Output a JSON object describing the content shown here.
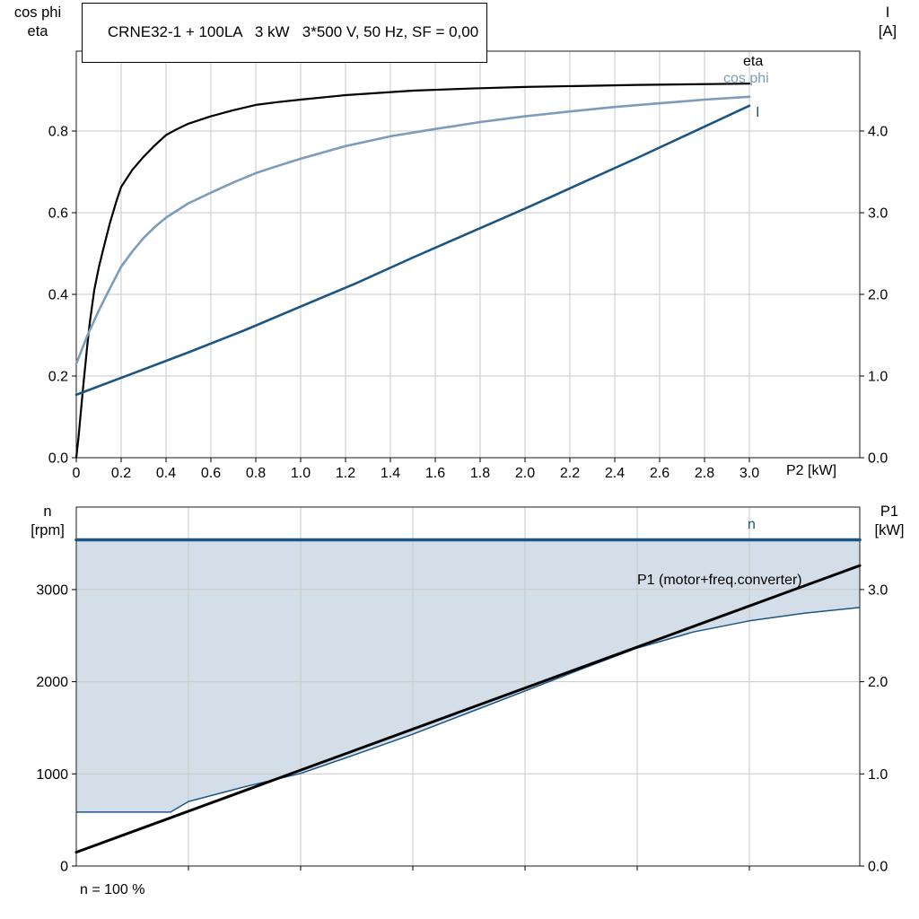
{
  "colors": {
    "dark_blue": "#1b5583",
    "light_blue": "#7d9cbc",
    "black": "#000000",
    "grid": "#c8c8c8",
    "fill": "#c9d6e2",
    "background": "#ffffff"
  },
  "chart_data": [
    {
      "type": "line",
      "title": "CRNE32-1 + 100LA   3 kW   3*500 V, 50 Hz, SF = 0,00",
      "x_axis": {
        "label": "P2 [kW]",
        "min": 0,
        "max": 3.492,
        "ticks": [
          0,
          0.2,
          0.4,
          0.6,
          0.8,
          1.0,
          1.2,
          1.4,
          1.6,
          1.8,
          2.0,
          2.2,
          2.4,
          2.6,
          2.8,
          3.0
        ],
        "tick_labels": [
          "0",
          "0.2",
          "0.4",
          "0.6",
          "0.8",
          "1.0",
          "1.2",
          "1.4",
          "1.6",
          "1.8",
          "2.0",
          "2.2",
          "2.4",
          "2.6",
          "2.8",
          "3.0"
        ]
      },
      "y_left": {
        "label_lines": [
          "cos phi",
          "eta"
        ],
        "min": 0,
        "max": 0.9956,
        "ticks": [
          0,
          0.2,
          0.4,
          0.6,
          0.8
        ],
        "tick_labels": [
          "0.0",
          "0.2",
          "0.4",
          "0.6",
          "0.8"
        ]
      },
      "y_right": {
        "label_lines": [
          "I",
          "[A]"
        ],
        "min": 0,
        "max": 4.978,
        "ticks": [
          0,
          1,
          2,
          3,
          4
        ],
        "tick_labels": [
          "0.0",
          "1.0",
          "2.0",
          "3.0",
          "4.0"
        ]
      },
      "grid": true,
      "legend_position": "inline-right",
      "series": [
        {
          "id": "eta",
          "name": "eta",
          "axis": "left",
          "color": "#000000",
          "width": 2.2,
          "points": [
            [
              0,
              0
            ],
            [
              0.01,
              0.05
            ],
            [
              0.02,
              0.11
            ],
            [
              0.03,
              0.17
            ],
            [
              0.04,
              0.225
            ],
            [
              0.05,
              0.28
            ],
            [
              0.06,
              0.33
            ],
            [
              0.08,
              0.41
            ],
            [
              0.1,
              0.465
            ],
            [
              0.12,
              0.51
            ],
            [
              0.15,
              0.575
            ],
            [
              0.18,
              0.63
            ],
            [
              0.2,
              0.663
            ],
            [
              0.25,
              0.705
            ],
            [
              0.3,
              0.737
            ],
            [
              0.35,
              0.765
            ],
            [
              0.4,
              0.79
            ],
            [
              0.45,
              0.805
            ],
            [
              0.5,
              0.818
            ],
            [
              0.6,
              0.836
            ],
            [
              0.7,
              0.851
            ],
            [
              0.8,
              0.864
            ],
            [
              0.9,
              0.871
            ],
            [
              1.0,
              0.877
            ],
            [
              1.2,
              0.888
            ],
            [
              1.5,
              0.899
            ],
            [
              1.75,
              0.904
            ],
            [
              2.0,
              0.908
            ],
            [
              2.5,
              0.913
            ],
            [
              3.0,
              0.916
            ]
          ]
        },
        {
          "id": "cos-phi",
          "name": "cos phi",
          "axis": "left",
          "color": "#7d9cbc",
          "width": 2.6,
          "points": [
            [
              0,
              0.23
            ],
            [
              0.05,
              0.3
            ],
            [
              0.1,
              0.36
            ],
            [
              0.15,
              0.415
            ],
            [
              0.2,
              0.468
            ],
            [
              0.25,
              0.505
            ],
            [
              0.3,
              0.538
            ],
            [
              0.35,
              0.565
            ],
            [
              0.4,
              0.588
            ],
            [
              0.5,
              0.623
            ],
            [
              0.6,
              0.649
            ],
            [
              0.7,
              0.674
            ],
            [
              0.8,
              0.697
            ],
            [
              0.9,
              0.715
            ],
            [
              1.0,
              0.732
            ],
            [
              1.2,
              0.763
            ],
            [
              1.4,
              0.787
            ],
            [
              1.6,
              0.805
            ],
            [
              1.8,
              0.822
            ],
            [
              2.0,
              0.836
            ],
            [
              2.2,
              0.848
            ],
            [
              2.4,
              0.859
            ],
            [
              2.6,
              0.868
            ],
            [
              2.8,
              0.877
            ],
            [
              3.0,
              0.884
            ]
          ]
        },
        {
          "id": "current",
          "name": "I",
          "axis": "right",
          "color": "#1b5583",
          "width": 2.6,
          "points": [
            [
              0,
              0.77
            ],
            [
              0.25,
              1.03
            ],
            [
              0.5,
              1.29
            ],
            [
              0.75,
              1.56
            ],
            [
              1.0,
              1.85
            ],
            [
              1.25,
              2.14
            ],
            [
              1.5,
              2.45
            ],
            [
              1.75,
              2.75
            ],
            [
              2.0,
              3.05
            ],
            [
              2.25,
              3.36
            ],
            [
              2.5,
              3.67
            ],
            [
              2.75,
              3.99
            ],
            [
              3.0,
              4.31
            ]
          ]
        }
      ]
    },
    {
      "type": "line",
      "title": "",
      "x_axis": {
        "label": "",
        "min": 0,
        "max": 3.492,
        "ticks": [
          0.5,
          1.0,
          1.5,
          2.0,
          2.5,
          3.0
        ]
      },
      "y_left": {
        "label_lines": [
          "n",
          "[rpm]"
        ],
        "min": 0,
        "max": 3895,
        "ticks": [
          0,
          1000,
          2000,
          3000
        ],
        "tick_labels": [
          "0",
          "1000",
          "2000",
          "3000"
        ]
      },
      "y_right": {
        "label_lines": [
          "P1",
          "[kW]"
        ],
        "min": 0,
        "max": 3.895,
        "ticks": [
          0,
          1,
          2,
          3
        ],
        "tick_labels": [
          "0.0",
          "1.0",
          "2.0",
          "3.0"
        ]
      },
      "footnote": "n = 100 %",
      "series": [
        {
          "id": "speed-lower-boundary",
          "name": "",
          "axis": "left",
          "color": "#1b5583",
          "width": 1.5,
          "points": [
            [
              0,
              585
            ],
            [
              0.42,
              585
            ],
            [
              0.5,
              700
            ],
            [
              0.75,
              860
            ],
            [
              1.0,
              1005
            ],
            [
              1.25,
              1215
            ],
            [
              1.5,
              1430
            ],
            [
              1.75,
              1665
            ],
            [
              2.0,
              1900
            ],
            [
              2.25,
              2135
            ],
            [
              2.5,
              2365
            ],
            [
              2.75,
              2540
            ],
            [
              3.0,
              2660
            ],
            [
              3.25,
              2745
            ],
            [
              3.492,
              2805
            ]
          ]
        },
        {
          "id": "speed",
          "name": "n",
          "axis": "left",
          "color": "#1b5583",
          "width": 3.5,
          "points": [
            [
              0,
              3540
            ],
            [
              3.492,
              3540
            ]
          ]
        },
        {
          "id": "p1-total",
          "name": "P1 (motor+freq.converter)",
          "axis": "right",
          "color": "#000000",
          "width": 3,
          "points": [
            [
              0,
              0.15
            ],
            [
              3.492,
              3.26
            ]
          ]
        }
      ],
      "fill_between": {
        "upper": "speed",
        "lower": "speed-lower-boundary",
        "color": "#c9d6e2",
        "opacity": 0.8
      }
    }
  ]
}
